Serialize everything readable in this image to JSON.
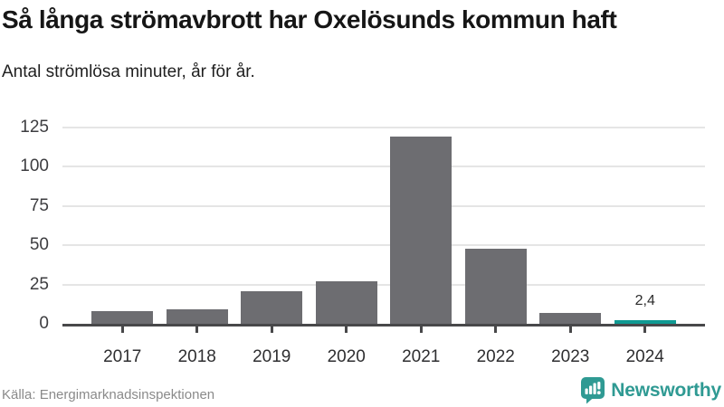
{
  "header": {
    "title": "Så långa strömavbrott har Oxelösunds kommun haft",
    "subtitle": "Antal strömlösa minuter, år för år."
  },
  "footer": {
    "source": "Källa: Energimarknadsinspektionen",
    "brand_name": "Newsworthy",
    "brand_icon": "bar-chart-speech-bubble-icon"
  },
  "colors": {
    "bar": "#6d6d71",
    "highlight": "#0f9a93",
    "brand": "#2f9a93",
    "grid": "#e5e5e5",
    "axis": "#48484a"
  },
  "chart_data": {
    "type": "bar",
    "title": "Så långa strömavbrott har Oxelösunds kommun haft",
    "subtitle": "Antal strömlösa minuter, år för år.",
    "categories": [
      "2017",
      "2018",
      "2019",
      "2020",
      "2021",
      "2022",
      "2023",
      "2024"
    ],
    "values": [
      8,
      9,
      21,
      27,
      119,
      48,
      7,
      2.4
    ],
    "bar_labels": [
      "",
      "",
      "",
      "",
      "",
      "",
      "",
      "2,4"
    ],
    "highlight_index": 7,
    "xlabel": "",
    "ylabel": "",
    "yticks": [
      0,
      25,
      50,
      75,
      100,
      125
    ],
    "ylim": [
      0,
      125
    ],
    "grid": "horizontal",
    "legend": "none"
  }
}
